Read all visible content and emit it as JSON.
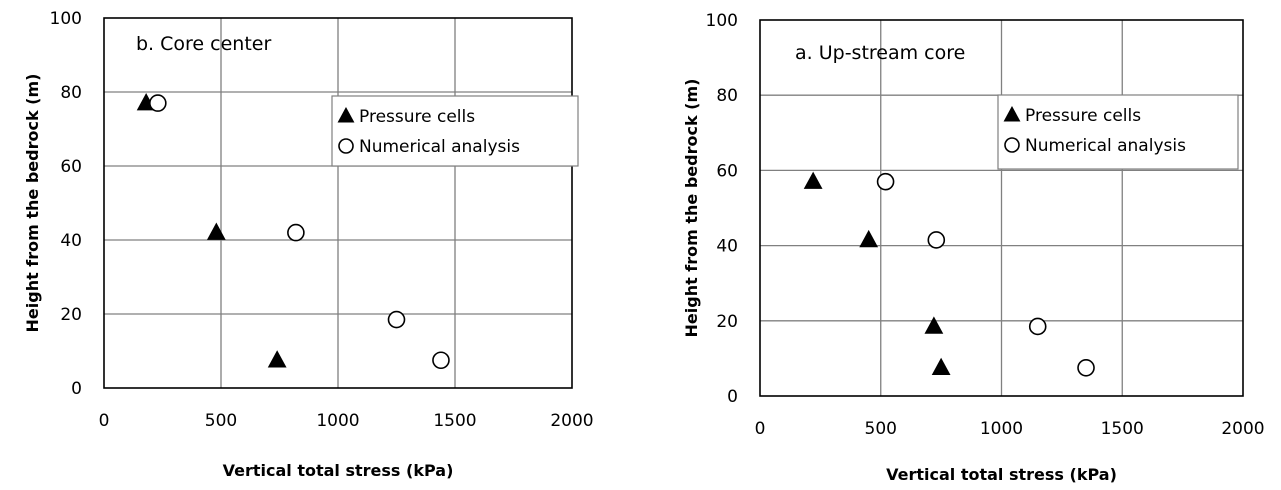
{
  "chart_data": [
    {
      "type": "scatter",
      "title": "b. Core center",
      "xlabel": "Vertical total stress (kPa)",
      "ylabel": "Height from the bedrock (m)",
      "xlim": [
        0,
        2000
      ],
      "ylim": [
        0,
        100
      ],
      "xticks": [
        "0",
        "500",
        "1000",
        "1500",
        "2000"
      ],
      "yticks": [
        "0",
        "20",
        "40",
        "60",
        "80",
        "100"
      ],
      "grid": true,
      "legend_position": "top-right",
      "series": [
        {
          "name": "Pressure cells",
          "marker": "filled-triangle",
          "points": [
            {
              "x": 180,
              "y": 77
            },
            {
              "x": 480,
              "y": 42
            },
            {
              "x": 740,
              "y": 7.5
            }
          ]
        },
        {
          "name": "Numerical analysis",
          "marker": "open-circle",
          "points": [
            {
              "x": 230,
              "y": 77
            },
            {
              "x": 820,
              "y": 42
            },
            {
              "x": 1250,
              "y": 18.5
            },
            {
              "x": 1440,
              "y": 7.5
            }
          ]
        }
      ]
    },
    {
      "type": "scatter",
      "title": "a. Up-stream core",
      "xlabel": "Vertical total stress (kPa)",
      "ylabel": "Height from the bedrock (m)",
      "xlim": [
        0,
        2000
      ],
      "ylim": [
        0,
        100
      ],
      "xticks": [
        "0",
        "500",
        "1000",
        "1500",
        "2000"
      ],
      "yticks": [
        "0",
        "20",
        "40",
        "60",
        "80",
        "100"
      ],
      "grid": true,
      "legend_position": "top-right",
      "series": [
        {
          "name": "Pressure cells",
          "marker": "filled-triangle",
          "points": [
            {
              "x": 220,
              "y": 57
            },
            {
              "x": 450,
              "y": 41.5
            },
            {
              "x": 720,
              "y": 18.5
            },
            {
              "x": 750,
              "y": 7.5
            }
          ]
        },
        {
          "name": "Numerical analysis",
          "marker": "open-circle",
          "points": [
            {
              "x": 520,
              "y": 57
            },
            {
              "x": 730,
              "y": 41.5
            },
            {
              "x": 1150,
              "y": 18.5
            },
            {
              "x": 1350,
              "y": 7.5
            }
          ]
        }
      ]
    }
  ]
}
